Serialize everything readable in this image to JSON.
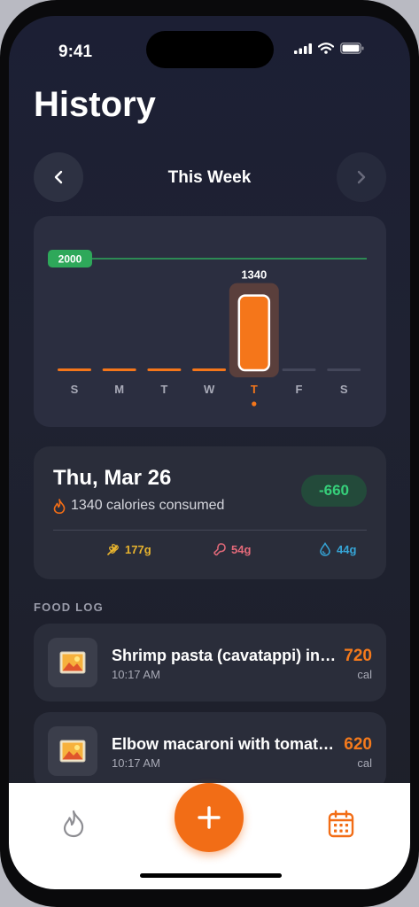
{
  "status_bar": {
    "time": "9:41"
  },
  "header": {
    "title": "History"
  },
  "week_nav": {
    "label": "This Week"
  },
  "chart_data": {
    "type": "bar",
    "categories": [
      "S",
      "M",
      "T",
      "W",
      "T",
      "F",
      "S"
    ],
    "values": [
      0,
      0,
      0,
      0,
      1340,
      0,
      0
    ],
    "logged": [
      true,
      true,
      true,
      true,
      true,
      false,
      false
    ],
    "selected_index": 4,
    "goal": 2000,
    "goal_label": "2000",
    "value_label": "1340",
    "ylim": [
      0,
      2000
    ],
    "colors": {
      "bar": "#f5761a",
      "goal": "#2ea85a",
      "empty": "#44475a",
      "selected_bg": "#5a3f3c"
    }
  },
  "day_summary": {
    "title": "Thu, Mar 26",
    "calories_text": "1340 calories consumed",
    "delta": "-660",
    "macros": {
      "carbs": "177g",
      "protein": "54g",
      "fat": "44g"
    }
  },
  "food_log": {
    "label": "FOOD LOG",
    "items": [
      {
        "name": "Shrimp pasta (cavatappi) in creamy sauce",
        "time": "10:17 AM",
        "calories": "720",
        "unit": "cal"
      },
      {
        "name": "Elbow macaroni with tomato sauce",
        "time": "10:17 AM",
        "calories": "620",
        "unit": "cal"
      }
    ]
  },
  "tab_bar": {
    "left_icon": "flame-icon",
    "center_icon": "plus-icon",
    "right_icon": "calendar-icon"
  },
  "colors": {
    "accent": "#f26d16",
    "positive": "#36d07a",
    "background": "#1e2133"
  }
}
